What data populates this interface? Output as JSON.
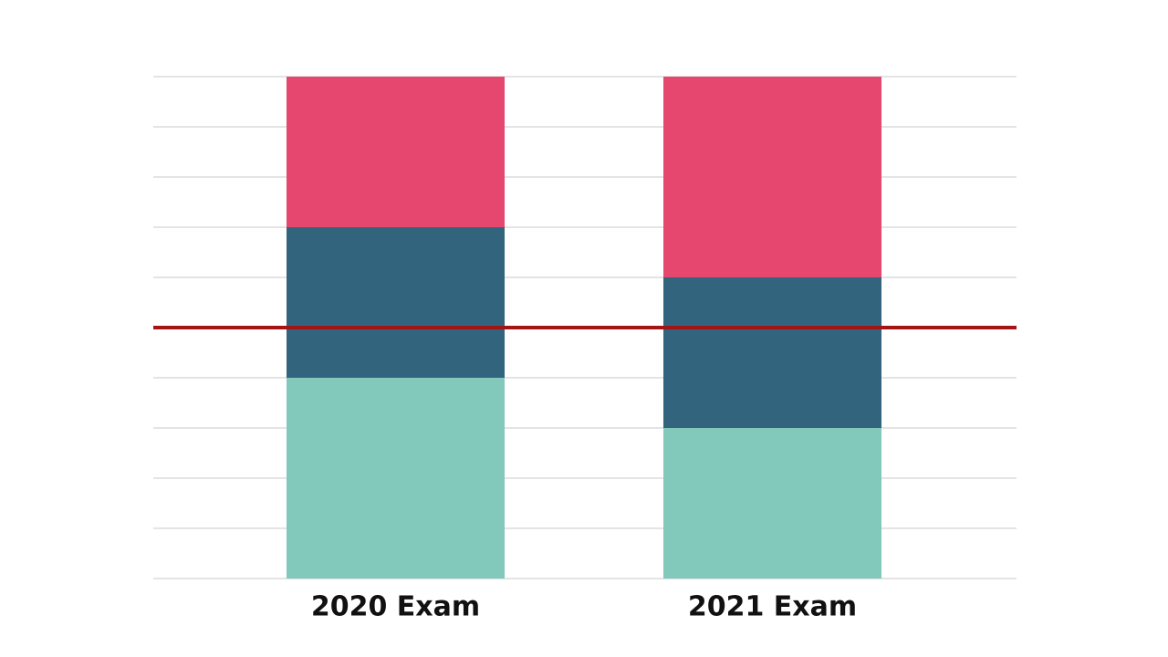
{
  "chart_data": {
    "type": "stacked-bar",
    "categories": [
      "2020 Exam",
      "2021 Exam"
    ],
    "series": [
      {
        "color": "#82c8bb",
        "values": [
          40,
          30
        ]
      },
      {
        "color": "#33647d",
        "values": [
          30,
          30
        ]
      },
      {
        "color": "#e6476e",
        "values": [
          30,
          40
        ]
      }
    ],
    "ylim": [
      0,
      100
    ],
    "yticks": [
      0,
      10,
      20,
      30,
      40,
      50,
      60,
      70,
      80,
      90,
      100
    ],
    "grid": true,
    "reference_line": {
      "value": 50,
      "color": "#a31515"
    }
  }
}
